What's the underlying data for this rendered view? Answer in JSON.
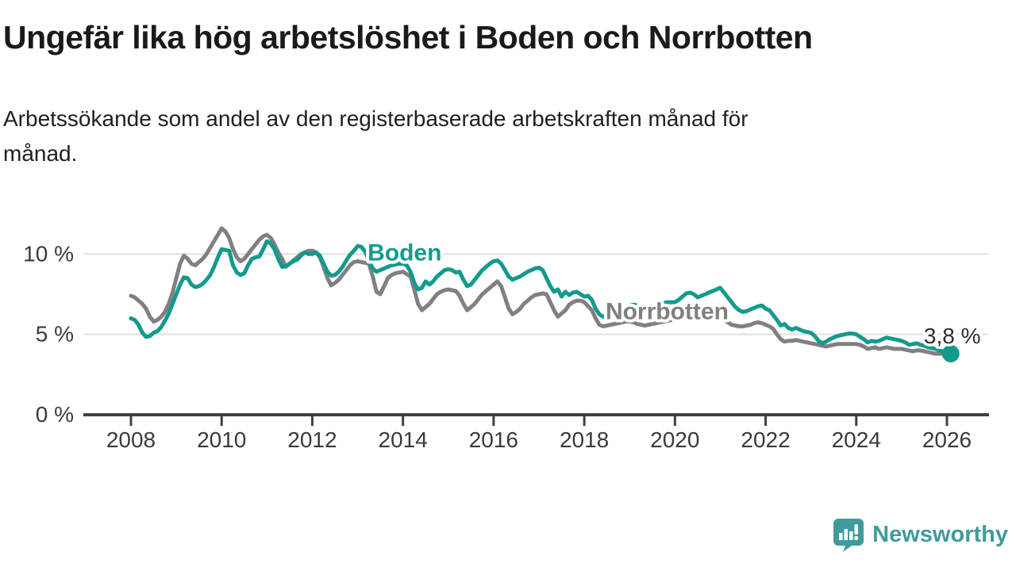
{
  "header": {
    "title": "Ungefär lika hög arbetslöshet i Boden och Norrbotten",
    "subtitle_lines": [
      "Arbetssökande som andel av den registerbaserade arbetskraften månad för",
      "månad."
    ]
  },
  "chart_data": {
    "type": "line",
    "title": "",
    "xlabel": "",
    "ylabel": "",
    "frequency": "monthly",
    "start": {
      "year": 2008,
      "month": 1
    },
    "end": {
      "year": 2026,
      "month": 2
    },
    "ylim": [
      0,
      12
    ],
    "grid": "horizontal-gridlines",
    "legend_position": "inline-labels",
    "colors": {
      "grid": "#e0e0e0",
      "axis": "#404040",
      "tick_text": "#3a3a3a",
      "annotation_text": "#2e2e2e"
    },
    "y_ticks": [
      {
        "value": 0,
        "label": "0 %"
      },
      {
        "value": 5,
        "label": "5 %"
      },
      {
        "value": 10,
        "label": "10 %"
      }
    ],
    "x_ticks": [
      {
        "year": 2008,
        "label": "2008"
      },
      {
        "year": 2010,
        "label": "2010"
      },
      {
        "year": 2012,
        "label": "2012"
      },
      {
        "year": 2014,
        "label": "2014"
      },
      {
        "year": 2016,
        "label": "2016"
      },
      {
        "year": 2018,
        "label": "2018"
      },
      {
        "year": 2020,
        "label": "2020"
      },
      {
        "year": 2022,
        "label": "2022"
      },
      {
        "year": 2024,
        "label": "2024"
      },
      {
        "year": 2026,
        "label": "2026"
      }
    ],
    "end_annotation": {
      "label": "3,8 %",
      "series": "Boden",
      "value": 3.8
    },
    "series": [
      {
        "name": "Norrbotten",
        "color": "#808084",
        "label_pos": {
          "year": 2018.47,
          "value": 5.95
        },
        "values": [
          7.4,
          7.3,
          7.1,
          6.9,
          6.6,
          6.1,
          5.8,
          5.9,
          6.1,
          6.4,
          6.9,
          7.6,
          8.5,
          9.4,
          9.9,
          9.7,
          9.4,
          9.3,
          9.5,
          9.7,
          10.0,
          10.4,
          10.8,
          11.2,
          11.6,
          11.4,
          11.0,
          10.3,
          9.8,
          9.55,
          9.7,
          10.0,
          10.3,
          10.6,
          10.9,
          11.1,
          11.2,
          11.0,
          10.6,
          10.1,
          9.7,
          9.2,
          9.4,
          9.6,
          9.8,
          10.0,
          10.1,
          10.2,
          10.2,
          10.1,
          9.8,
          9.2,
          8.5,
          8.05,
          8.2,
          8.4,
          8.7,
          9.0,
          9.3,
          9.5,
          9.55,
          9.5,
          9.45,
          9.4,
          8.6,
          7.65,
          7.5,
          8.0,
          8.5,
          8.7,
          8.8,
          8.85,
          8.9,
          8.75,
          8.6,
          7.8,
          6.9,
          6.5,
          6.7,
          6.9,
          7.2,
          7.5,
          7.65,
          7.75,
          7.8,
          7.75,
          7.7,
          7.4,
          6.9,
          6.5,
          6.7,
          6.9,
          7.2,
          7.5,
          7.7,
          7.9,
          8.1,
          8.3,
          8.0,
          7.3,
          6.6,
          6.25,
          6.4,
          6.6,
          6.9,
          7.1,
          7.3,
          7.45,
          7.5,
          7.55,
          7.5,
          7.0,
          6.5,
          6.1,
          6.3,
          6.5,
          6.85,
          7.0,
          7.1,
          7.1,
          7.0,
          6.75,
          6.5,
          6.0,
          5.6,
          5.5,
          5.55,
          5.6,
          5.65,
          5.7,
          5.75,
          5.8,
          5.8,
          5.75,
          5.65,
          5.6,
          5.55,
          5.6,
          5.65,
          5.7,
          5.75,
          5.8,
          5.85,
          5.9,
          6.0,
          6.1,
          6.4,
          6.6,
          6.6,
          6.55,
          6.45,
          6.35,
          6.25,
          6.15,
          6.1,
          6.05,
          6.0,
          5.9,
          5.75,
          5.6,
          5.55,
          5.5,
          5.5,
          5.55,
          5.6,
          5.7,
          5.75,
          5.7,
          5.6,
          5.5,
          5.35,
          5.0,
          4.7,
          4.55,
          4.6,
          4.6,
          4.65,
          4.6,
          4.55,
          4.5,
          4.45,
          4.4,
          4.35,
          4.3,
          4.25,
          4.3,
          4.35,
          4.4,
          4.4,
          4.4,
          4.4,
          4.4,
          4.4,
          4.35,
          4.25,
          4.1,
          4.15,
          4.2,
          4.1,
          4.15,
          4.2,
          4.15,
          4.1,
          4.1,
          4.1,
          4.05,
          4.0,
          3.95,
          4.0,
          4.0,
          3.95,
          3.9,
          3.85,
          3.8,
          3.8,
          3.8,
          3.8,
          3.8
        ]
      },
      {
        "name": "Boden",
        "color": "#129b8c",
        "label_pos": {
          "year": 2013.22,
          "value": 9.6
        },
        "values": [
          6.0,
          5.9,
          5.6,
          5.1,
          4.85,
          4.9,
          5.1,
          5.2,
          5.45,
          5.85,
          6.3,
          6.9,
          7.5,
          8.1,
          8.55,
          8.5,
          8.1,
          7.95,
          8.0,
          8.15,
          8.4,
          8.7,
          9.2,
          9.8,
          10.3,
          10.25,
          10.2,
          9.3,
          8.85,
          8.7,
          8.8,
          9.3,
          9.7,
          9.8,
          9.85,
          10.3,
          10.8,
          10.65,
          10.3,
          9.7,
          9.2,
          9.25,
          9.4,
          9.55,
          9.65,
          9.9,
          10.1,
          10.0,
          10.0,
          10.1,
          9.9,
          9.4,
          8.9,
          8.65,
          8.7,
          8.9,
          9.2,
          9.6,
          9.95,
          10.2,
          10.5,
          10.45,
          10.15,
          9.6,
          9.1,
          8.9,
          9.0,
          9.1,
          9.2,
          9.3,
          9.35,
          9.4,
          9.4,
          9.3,
          8.9,
          8.2,
          7.8,
          7.9,
          8.3,
          8.1,
          8.3,
          8.6,
          8.8,
          9.0,
          9.05,
          9.0,
          8.85,
          8.9,
          8.4,
          8.0,
          8.1,
          8.4,
          8.7,
          9.0,
          9.2,
          9.4,
          9.55,
          9.6,
          9.4,
          9.0,
          8.6,
          8.4,
          8.5,
          8.6,
          8.75,
          8.9,
          9.0,
          9.1,
          9.15,
          9.0,
          8.5,
          8.0,
          7.65,
          7.8,
          7.35,
          7.65,
          7.45,
          7.6,
          7.65,
          7.5,
          7.35,
          7.4,
          7.15,
          6.6,
          6.25,
          6.1,
          6.2,
          6.3,
          6.4,
          6.5,
          6.6,
          6.7,
          6.8,
          6.85,
          6.8,
          6.65,
          6.55,
          6.6,
          6.7,
          6.8,
          6.9,
          6.95,
          7.0,
          7.0,
          7.0,
          7.15,
          7.35,
          7.55,
          7.6,
          7.5,
          7.3,
          7.4,
          7.5,
          7.6,
          7.7,
          7.8,
          7.9,
          7.6,
          7.3,
          7.0,
          6.7,
          6.5,
          6.4,
          6.45,
          6.55,
          6.65,
          6.75,
          6.8,
          6.6,
          6.5,
          6.2,
          5.9,
          5.55,
          5.65,
          5.4,
          5.3,
          5.4,
          5.3,
          5.2,
          5.15,
          5.1,
          4.9,
          4.6,
          4.45,
          4.55,
          4.7,
          4.8,
          4.9,
          4.95,
          5.0,
          5.05,
          5.05,
          5.0,
          4.85,
          4.7,
          4.5,
          4.6,
          4.55,
          4.6,
          4.7,
          4.8,
          4.75,
          4.7,
          4.65,
          4.6,
          4.5,
          4.35,
          4.4,
          4.45,
          4.35,
          4.3,
          4.2,
          4.15,
          4.1,
          4.0,
          3.95,
          3.85,
          3.8
        ]
      }
    ]
  },
  "branding": {
    "logo_text": "Newsworthy",
    "logo_color": "#3f9b9b",
    "logo_icon": "bar-chart-speech-bubble-icon"
  }
}
